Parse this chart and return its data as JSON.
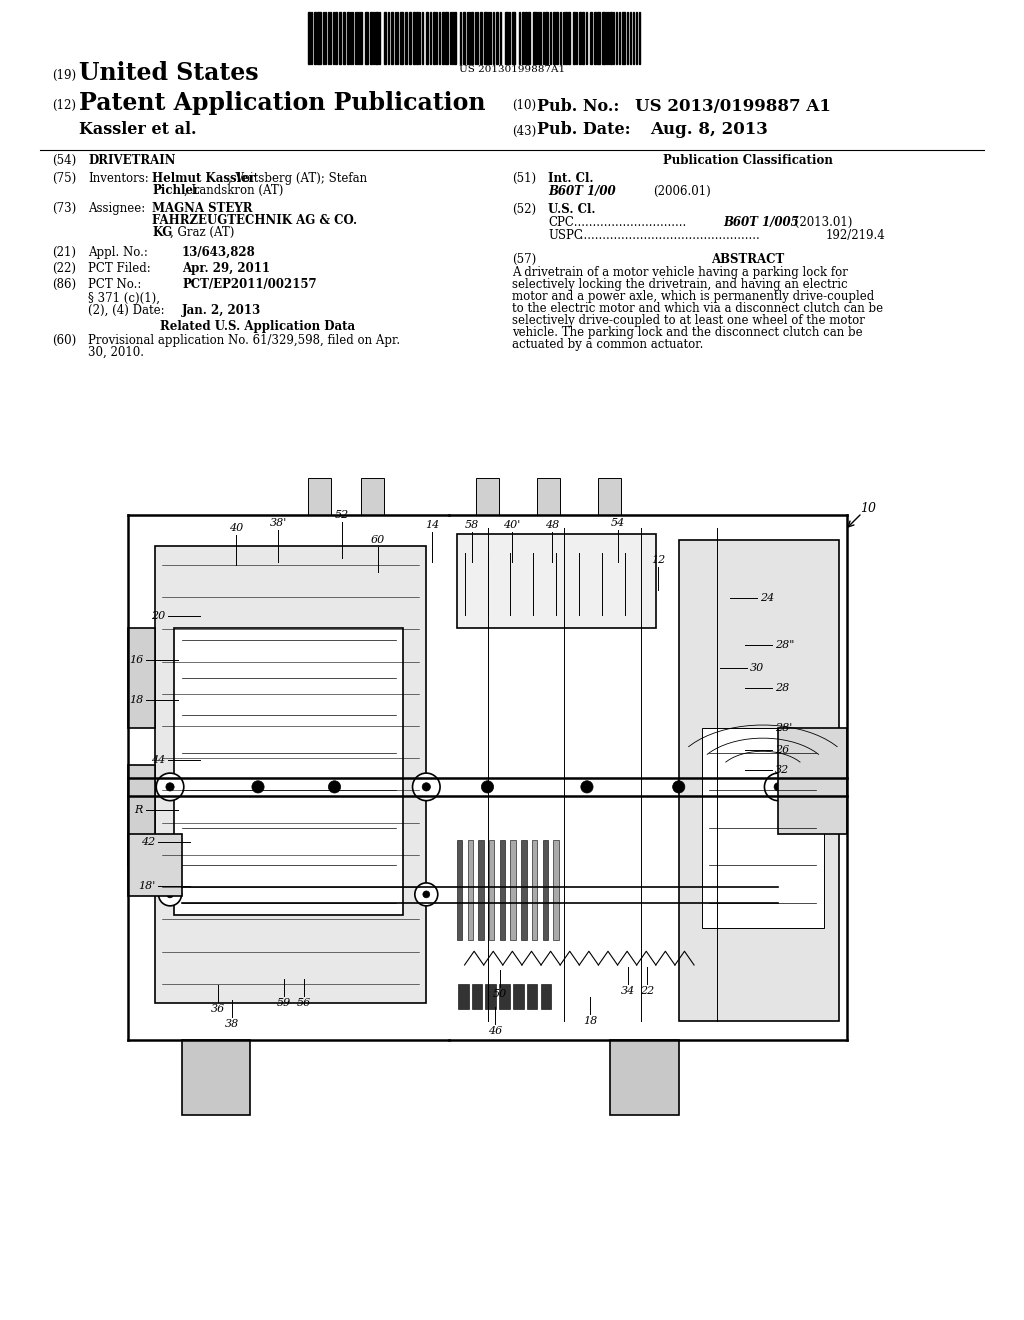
{
  "background_color": "#ffffff",
  "barcode_text": "US 20130199887A1",
  "header": {
    "tag19": "(19)",
    "title_line1": "United States",
    "tag12": "(12)",
    "title_line2": "Patent Application Publication",
    "tag10": "(10)",
    "pub_no_label": "Pub. No.: ",
    "pub_no_value": "US 2013/0199887 A1",
    "author": "Kassler et al.",
    "tag43": "(43)",
    "pub_date_label": "Pub. Date:",
    "pub_date_value": "Aug. 8, 2013"
  },
  "left_col": {
    "tag54": "(54)",
    "title": "DRIVETRAIN",
    "tag75": "(75)",
    "inventors_label": "Inventors:",
    "inventors_bold": "Helmut Kassler",
    "inventors_rest1": ", Voitsberg (AT); Stefan",
    "inventors_bold2": "Pichler",
    "inventors_rest2": ", Landskron (AT)",
    "tag73": "(73)",
    "assignee_label": "Assignee:",
    "assignee_bold1": "MAGNA STEYR",
    "assignee_bold2": "FAHRZEUGTECHNIK AG & CO.",
    "assignee_rest": "KG",
    "assignee_rest2": ", Graz (AT)",
    "tag21": "(21)",
    "appl_no_label": "Appl. No.:",
    "appl_no_value": "13/643,828",
    "tag22": "(22)",
    "pct_filed_label": "PCT Filed:",
    "pct_filed_value": "Apr. 29, 2011",
    "tag86": "(86)",
    "pct_no_label": "PCT No.:",
    "pct_no_value": "PCT/EP2011/002157",
    "section371a": "§ 371 (c)(1),",
    "section371b": "(2), (4) Date:",
    "date_371_value": "Jan. 2, 2013",
    "related_header": "Related U.S. Application Data",
    "tag60": "(60)",
    "provisional1": "Provisional application No. 61/329,598, filed on Apr.",
    "provisional2": "30, 2010."
  },
  "right_col": {
    "pub_class_header": "Publication Classification",
    "tag51": "(51)",
    "int_cl_label": "Int. Cl.",
    "int_cl_value": "B60T 1/00",
    "int_cl_date": "(2006.01)",
    "tag52": "(52)",
    "us_cl_label": "U.S. Cl.",
    "cpc_label": "CPC",
    "cpc_dots": " ..............................",
    "cpc_value": "B60T 1/005",
    "cpc_date": " (2013.01)",
    "uspc_label": "USPC",
    "uspc_dots": " ................................................",
    "uspc_value": "192/219.4",
    "tag57": "(57)",
    "abstract_header": "ABSTRACT",
    "abstract_lines": [
      "A drivetrain of a motor vehicle having a parking lock for",
      "selectively locking the drivetrain, and having an electric",
      "motor and a power axle, which is permanently drive-coupled",
      "to the electric motor and which via a disconnect clutch can be",
      "selectively drive-coupled to at least one wheel of the motor",
      "vehicle. The parking lock and the disconnect clutch can be",
      "actuated by a common actuator."
    ]
  }
}
